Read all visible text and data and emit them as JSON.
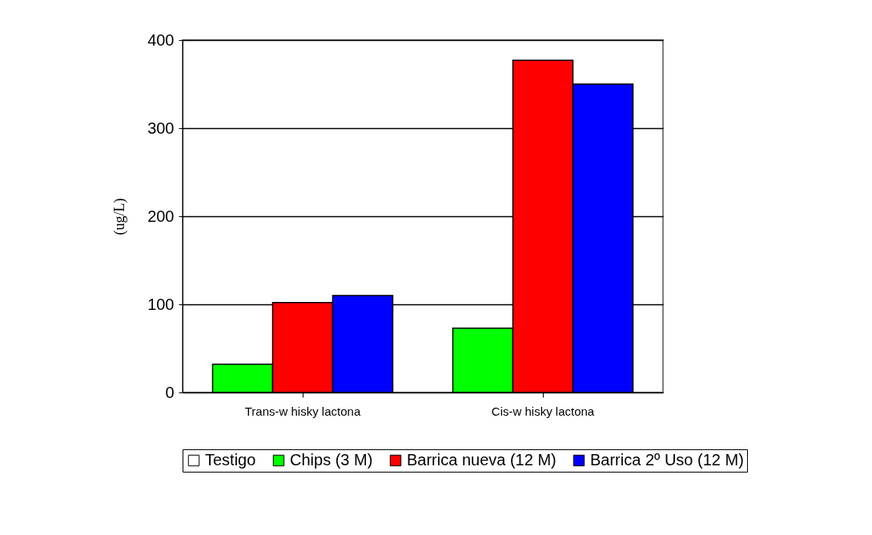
{
  "chart_data": {
    "type": "bar",
    "ylabel": "(ug/L)",
    "categories": [
      "Trans-w hisky lactona",
      "Cis-w hisky lactona"
    ],
    "series": [
      {
        "name": "Testigo",
        "color": "#ffffff",
        "values": [
          null,
          null
        ]
      },
      {
        "name": "Chips (3 M)",
        "color": "#00ff00",
        "values": [
          32,
          73
        ]
      },
      {
        "name": "Barrica nueva (12 M)",
        "color": "#ff0000",
        "values": [
          102,
          377
        ]
      },
      {
        "name": "Barrica 2º Uso (12 M)",
        "color": "#0000ff",
        "values": [
          110,
          350
        ]
      }
    ],
    "ylim": [
      0,
      400
    ],
    "yticks": [
      0,
      100,
      200,
      300,
      400
    ],
    "grid": "y",
    "legend": "bottom"
  }
}
